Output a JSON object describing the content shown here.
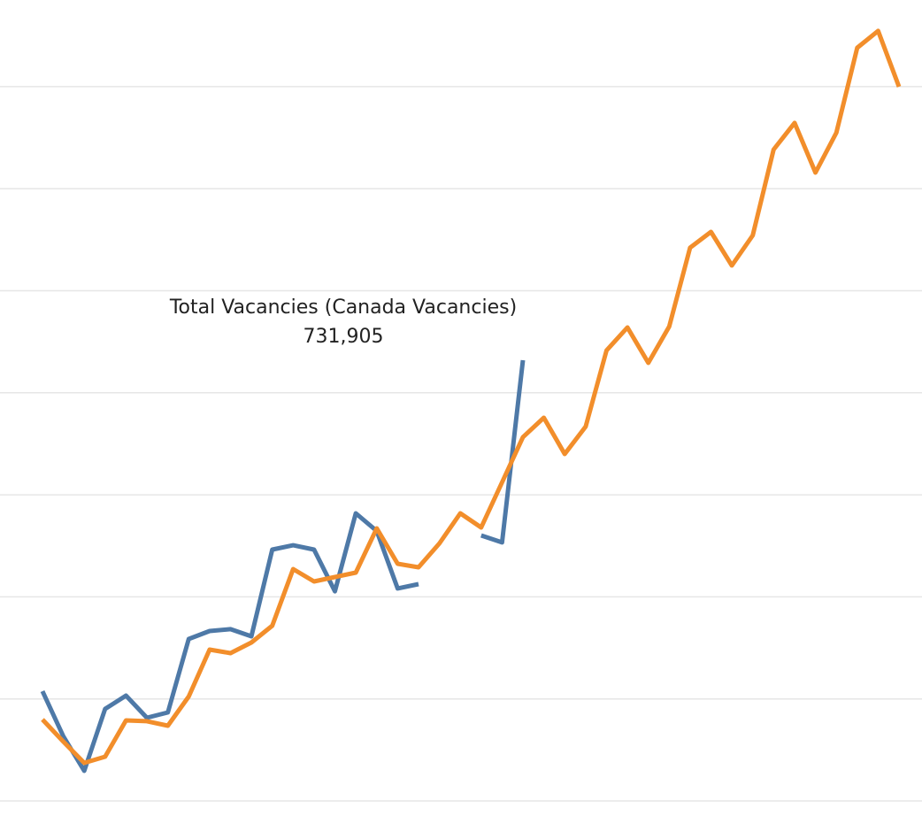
{
  "chart_data": {
    "type": "line",
    "annotation": "Total Vacancies (Canada Vacancies)",
    "categories": [
      null,
      null,
      null,
      null,
      null,
      null,
      null,
      null,
      null,
      null,
      null,
      null,
      null,
      null,
      null,
      null,
      null,
      null,
      null,
      null,
      null,
      null,
      null,
      null,
      null,
      null,
      null,
      null,
      null,
      null,
      null,
      null,
      null,
      null,
      null,
      null,
      null,
      null,
      null,
      null,
      null,
      null
    ],
    "series": [
      {
        "color": "#4e79a7",
        "values": [
          407500,
          363300,
          329500,
          390200,
          403200,
          381500,
          386700,
          458700,
          466500,
          468300,
          461300,
          546300,
          550600,
          546300,
          505500,
          581900,
          564500,
          508200,
          512500,
          null,
          null,
          560200,
          553300,
          731905,
          null,
          null,
          null,
          null,
          null,
          null,
          null,
          null,
          null,
          null,
          null,
          null,
          null,
          null,
          null,
          null,
          null,
          null
        ],
        "value_labels": [
          null,
          null,
          null,
          null,
          null,
          null,
          null,
          null,
          null,
          null,
          null,
          null,
          null,
          null,
          null,
          null,
          null,
          null,
          null,
          null,
          null,
          null,
          null,
          "731,905",
          null,
          null,
          null,
          null,
          null,
          null,
          null,
          null,
          null,
          null,
          null,
          null,
          null,
          null,
          null,
          null,
          null,
          null
        ]
      },
      {
        "color": "#f28e2b",
        "values": [
          379800,
          358100,
          337300,
          343400,
          378900,
          378100,
          373700,
          402300,
          448300,
          444800,
          455200,
          471700,
          527200,
          515100,
          519400,
          523800,
          567100,
          532400,
          529000,
          552400,
          581900,
          568000,
          612200,
          656500,
          675500,
          640000,
          666900,
          741500,
          764000,
          729300,
          764900,
          842100,
          857700,
          824700,
          854200,
          938300,
          964400,
          915800,
          954800,
          1038100,
          1054600,
          999900
        ]
      }
    ],
    "ylim": [
      262700,
      1084900
    ],
    "yticks": [
      300000,
      400000,
      500000,
      600000,
      700000,
      800000,
      900000,
      1000000
    ],
    "grid": true
  }
}
